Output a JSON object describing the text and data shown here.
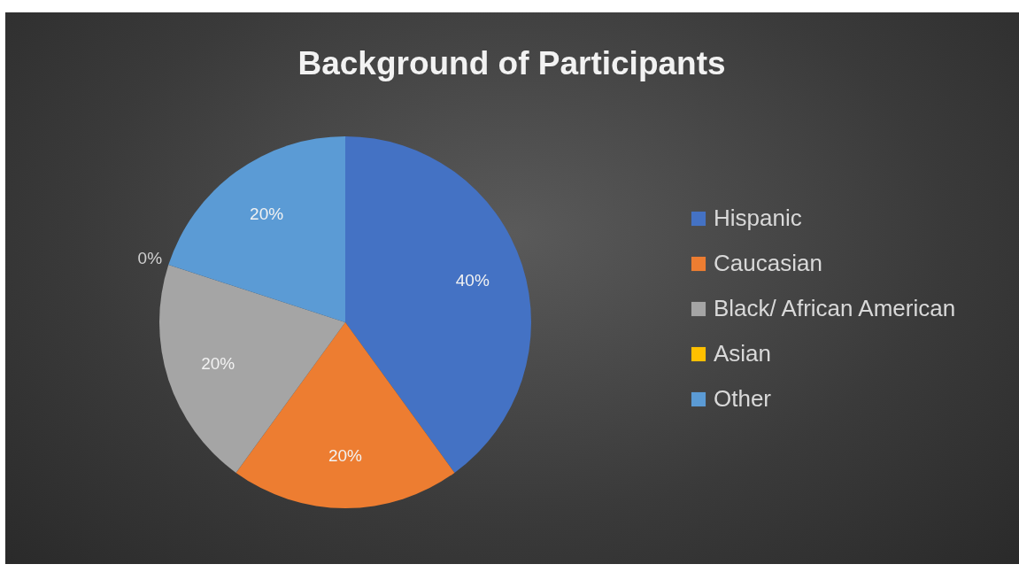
{
  "chart_data": {
    "type": "pie",
    "title": "Background of Participants",
    "categories": [
      "Hispanic",
      "Caucasian",
      "Black/ African American",
      "Asian",
      "Other"
    ],
    "values": [
      40,
      20,
      20,
      0,
      20
    ],
    "colors": [
      "#4472c4",
      "#ed7d31",
      "#a5a5a5",
      "#ffc000",
      "#5b9bd5"
    ],
    "value_labels": [
      "40%",
      "20%",
      "20%",
      "0%",
      "20%"
    ],
    "legend": "right"
  }
}
